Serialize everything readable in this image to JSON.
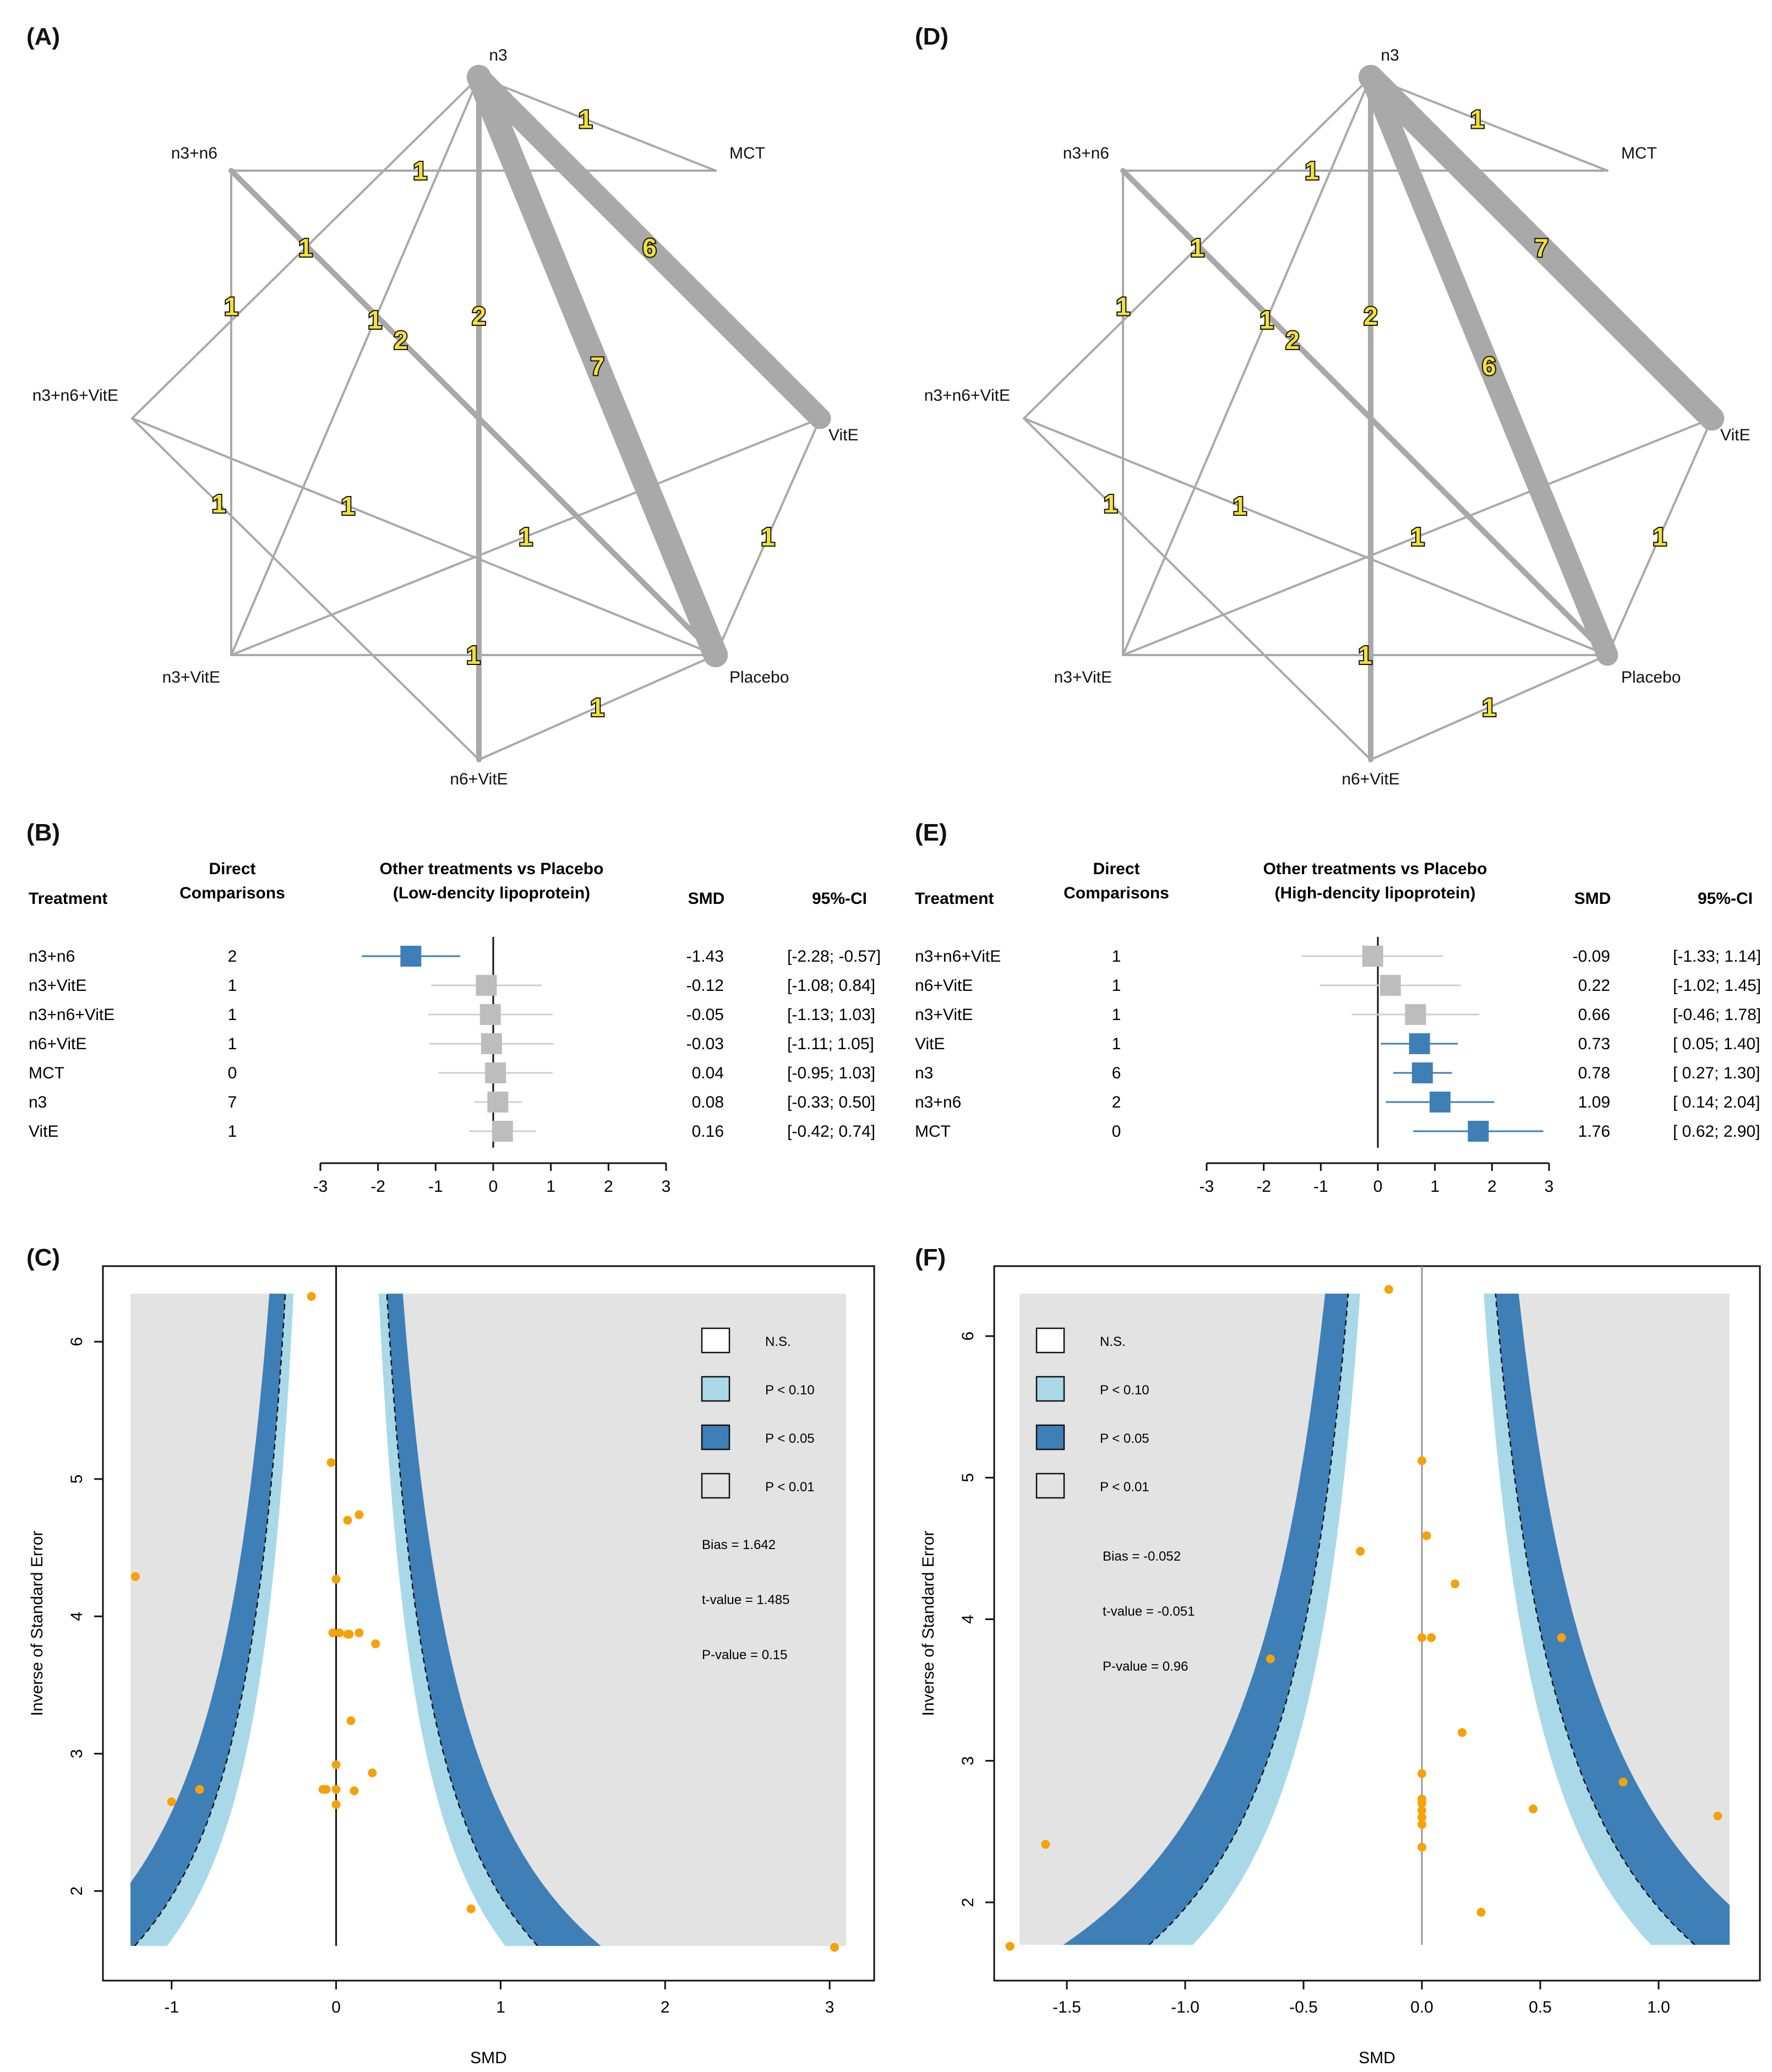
{
  "panel_labels": {
    "A": "(A)",
    "B": "(B)",
    "C": "(C)",
    "D": "(D)",
    "E": "(E)",
    "F": "(F)"
  },
  "networks": [
    {
      "id": "A",
      "nodes": [
        "n3",
        "MCT",
        "VitE",
        "Placebo",
        "n6+VitE",
        "n3+VitE",
        "n3+n6+VitE",
        "n3+n6"
      ],
      "edges": [
        {
          "from": "n3",
          "to": "MCT",
          "count": "1"
        },
        {
          "from": "n3+n6",
          "to": "MCT",
          "count": "1"
        },
        {
          "from": "n3",
          "to": "VitE",
          "count": "6"
        },
        {
          "from": "n3",
          "to": "Placebo",
          "count": "7"
        },
        {
          "from": "n3",
          "to": "n3+n6+VitE",
          "count": "1"
        },
        {
          "from": "n3",
          "to": "n3+VitE",
          "count": "1"
        },
        {
          "from": "n3",
          "to": "n6+VitE",
          "count": "2"
        },
        {
          "from": "n3+n6",
          "to": "Placebo",
          "count": "2"
        },
        {
          "from": "n3+n6",
          "to": "n3+VitE",
          "count": "1"
        },
        {
          "from": "n3+n6+VitE",
          "to": "Placebo",
          "count": "1"
        },
        {
          "from": "n3+n6+VitE",
          "to": "n6+VitE",
          "count": "1"
        },
        {
          "from": "n3+VitE",
          "to": "VitE",
          "count": "1"
        },
        {
          "from": "n3+VitE",
          "to": "Placebo",
          "count": "1"
        },
        {
          "from": "VitE",
          "to": "Placebo",
          "count": "1"
        },
        {
          "from": "Placebo",
          "to": "n6+VitE",
          "count": "1"
        }
      ]
    },
    {
      "id": "D",
      "nodes": [
        "n3",
        "MCT",
        "VitE",
        "Placebo",
        "n6+VitE",
        "n3+VitE",
        "n3+n6+VitE",
        "n3+n6"
      ],
      "edges": [
        {
          "from": "n3",
          "to": "MCT",
          "count": "1"
        },
        {
          "from": "n3+n6",
          "to": "MCT",
          "count": "1"
        },
        {
          "from": "n3",
          "to": "VitE",
          "count": "7"
        },
        {
          "from": "n3",
          "to": "Placebo",
          "count": "6"
        },
        {
          "from": "n3",
          "to": "n3+n6+VitE",
          "count": "1"
        },
        {
          "from": "n3",
          "to": "n3+VitE",
          "count": "1"
        },
        {
          "from": "n3",
          "to": "n6+VitE",
          "count": "2"
        },
        {
          "from": "n3+n6",
          "to": "Placebo",
          "count": "2"
        },
        {
          "from": "n3+n6",
          "to": "n3+VitE",
          "count": "1"
        },
        {
          "from": "n3+n6+VitE",
          "to": "Placebo",
          "count": "1"
        },
        {
          "from": "n3+n6+VitE",
          "to": "n6+VitE",
          "count": "1"
        },
        {
          "from": "n3+VitE",
          "to": "VitE",
          "count": "1"
        },
        {
          "from": "n3+VitE",
          "to": "Placebo",
          "count": "1"
        },
        {
          "from": "VitE",
          "to": "Placebo",
          "count": "1"
        },
        {
          "from": "Placebo",
          "to": "n6+VitE",
          "count": "1"
        }
      ]
    }
  ],
  "forests": [
    {
      "id": "B",
      "header_treatment": "Treatment",
      "header_direct_1": "Direct",
      "header_direct_2": "Comparisons",
      "header_title_1": "Other treatments vs Placebo",
      "header_title_2": "(Low-dencity lipoprotein)",
      "header_smd": "SMD",
      "header_ci": "95%-CI",
      "xlim": [
        -3,
        3
      ],
      "ticks": [
        "-3",
        "-2",
        "-1",
        "0",
        "1",
        "2",
        "3"
      ],
      "rows": [
        {
          "name": "n3+n6",
          "direct": "2",
          "smd": -1.43,
          "lo": -2.28,
          "hi": -0.57,
          "smd_text": "-1.43",
          "ci_text": "[-2.28; -0.57]",
          "sig": true
        },
        {
          "name": "n3+VitE",
          "direct": "1",
          "smd": -0.12,
          "lo": -1.08,
          "hi": 0.84,
          "smd_text": "-0.12",
          "ci_text": "[-1.08;  0.84]",
          "sig": false
        },
        {
          "name": "n3+n6+VitE",
          "direct": "1",
          "smd": -0.05,
          "lo": -1.13,
          "hi": 1.03,
          "smd_text": "-0.05",
          "ci_text": "[-1.13;  1.03]",
          "sig": false
        },
        {
          "name": "n6+VitE",
          "direct": "1",
          "smd": -0.03,
          "lo": -1.11,
          "hi": 1.05,
          "smd_text": "-0.03",
          "ci_text": "[-1.11;  1.05]",
          "sig": false
        },
        {
          "name": "MCT",
          "direct": "0",
          "smd": 0.04,
          "lo": -0.95,
          "hi": 1.03,
          "smd_text": "0.04",
          "ci_text": "[-0.95;  1.03]",
          "sig": false
        },
        {
          "name": "n3",
          "direct": "7",
          "smd": 0.08,
          "lo": -0.33,
          "hi": 0.5,
          "smd_text": "0.08",
          "ci_text": "[-0.33;  0.50]",
          "sig": false
        },
        {
          "name": "VitE",
          "direct": "1",
          "smd": 0.16,
          "lo": -0.42,
          "hi": 0.74,
          "smd_text": "0.16",
          "ci_text": "[-0.42;  0.74]",
          "sig": false
        }
      ]
    },
    {
      "id": "E",
      "header_treatment": "Treatment",
      "header_direct_1": "Direct",
      "header_direct_2": "Comparisons",
      "header_title_1": "Other treatments vs Placebo",
      "header_title_2": "(High-dencity lipoprotein)",
      "header_smd": "SMD",
      "header_ci": "95%-CI",
      "xlim": [
        -3,
        3
      ],
      "ticks": [
        "-3",
        "-2",
        "-1",
        "0",
        "1",
        "2",
        "3"
      ],
      "rows": [
        {
          "name": "n3+n6+VitE",
          "direct": "1",
          "smd": -0.09,
          "lo": -1.33,
          "hi": 1.14,
          "smd_text": "-0.09",
          "ci_text": "[-1.33;  1.14]",
          "sig": false
        },
        {
          "name": "n6+VitE",
          "direct": "1",
          "smd": 0.22,
          "lo": -1.02,
          "hi": 1.45,
          "smd_text": "0.22",
          "ci_text": "[-1.02;  1.45]",
          "sig": false
        },
        {
          "name": "n3+VitE",
          "direct": "1",
          "smd": 0.66,
          "lo": -0.46,
          "hi": 1.78,
          "smd_text": "0.66",
          "ci_text": "[-0.46;  1.78]",
          "sig": false
        },
        {
          "name": "VitE",
          "direct": "1",
          "smd": 0.73,
          "lo": 0.05,
          "hi": 1.4,
          "smd_text": "0.73",
          "ci_text": "[ 0.05;  1.40]",
          "sig": true
        },
        {
          "name": "n3",
          "direct": "6",
          "smd": 0.78,
          "lo": 0.27,
          "hi": 1.3,
          "smd_text": "0.78",
          "ci_text": "[ 0.27;  1.30]",
          "sig": true
        },
        {
          "name": "n3+n6",
          "direct": "2",
          "smd": 1.09,
          "lo": 0.14,
          "hi": 2.04,
          "smd_text": "1.09",
          "ci_text": "[ 0.14;  2.04]",
          "sig": true
        },
        {
          "name": "MCT",
          "direct": "0",
          "smd": 1.76,
          "lo": 0.62,
          "hi": 2.9,
          "smd_text": "1.76",
          "ci_text": "[ 0.62;  2.90]",
          "sig": true
        }
      ]
    }
  ],
  "funnels": [
    {
      "id": "C",
      "xlabel": "SMD",
      "ylabel": "Inverse of Standard Error",
      "xlim": [
        -1.25,
        3.1
      ],
      "ylim": [
        1.6,
        6.35
      ],
      "xticks": [
        "-1",
        "0",
        "1",
        "2",
        "3"
      ],
      "yticks": [
        "2",
        "3",
        "4",
        "5",
        "6"
      ],
      "legend": [
        "N.S.",
        "P < 0.10",
        "P < 0.05",
        "P < 0.01"
      ],
      "stats": [
        "Bias = 1.642",
        "t-value = 1.485",
        "P-value = 0.15"
      ],
      "points": [
        [
          -0.15,
          6.33
        ],
        [
          -0.03,
          5.12
        ],
        [
          0.14,
          4.74
        ],
        [
          0.07,
          4.7
        ],
        [
          -1.22,
          4.29
        ],
        [
          0.0,
          4.27
        ],
        [
          -0.02,
          3.88
        ],
        [
          0.02,
          3.88
        ],
        [
          0.07,
          3.87
        ],
        [
          0.08,
          3.87
        ],
        [
          0.14,
          3.88
        ],
        [
          0.24,
          3.8
        ],
        [
          0.09,
          3.24
        ],
        [
          0.0,
          2.92
        ],
        [
          0.22,
          2.86
        ],
        [
          -1.0,
          2.65
        ],
        [
          -0.83,
          2.74
        ],
        [
          -0.08,
          2.74
        ],
        [
          -0.06,
          2.74
        ],
        [
          0.0,
          2.74
        ],
        [
          0.11,
          2.73
        ],
        [
          0.0,
          2.63
        ],
        [
          0.82,
          1.87
        ],
        [
          3.03,
          1.59
        ]
      ]
    },
    {
      "id": "F",
      "xlabel": "SMD",
      "ylabel": "Inverse of Standard Error",
      "xlim": [
        -1.7,
        1.3
      ],
      "ylim": [
        1.7,
        6.3
      ],
      "xticks": [
        "-1.5",
        "-1.0",
        "-0.5",
        "0.0",
        "0.5",
        "1.0"
      ],
      "yticks": [
        "2",
        "3",
        "4",
        "5",
        "6"
      ],
      "legend": [
        "N.S.",
        "P < 0.10",
        "P < 0.05",
        "P < 0.01"
      ],
      "stats": [
        "Bias = -0.052",
        "t-value = -0.051",
        "P-value = 0.96"
      ],
      "points": [
        [
          -0.14,
          6.33
        ],
        [
          0.0,
          5.12
        ],
        [
          0.02,
          4.59
        ],
        [
          -0.26,
          4.48
        ],
        [
          0.14,
          4.25
        ],
        [
          0.0,
          3.87
        ],
        [
          0.04,
          3.87
        ],
        [
          0.59,
          3.87
        ],
        [
          -0.64,
          3.72
        ],
        [
          0.17,
          3.2
        ],
        [
          0.0,
          2.91
        ],
        [
          0.0,
          2.73
        ],
        [
          0.0,
          2.7
        ],
        [
          0.0,
          2.65
        ],
        [
          0.0,
          2.6
        ],
        [
          0.47,
          2.66
        ],
        [
          0.85,
          2.85
        ],
        [
          1.25,
          2.61
        ],
        [
          0.0,
          2.55
        ],
        [
          -1.59,
          2.41
        ],
        [
          0.0,
          2.39
        ],
        [
          0.25,
          1.93
        ],
        [
          -1.74,
          1.69
        ]
      ]
    }
  ],
  "colors": {
    "grey_edge": "#a9a9a9",
    "badge_fill": "#f2e13a",
    "blue": "#3f7fb8",
    "light_blue": "#a9d9e8",
    "ns": "#ffffff",
    "p01": "#e3e3e3",
    "point": "#f5a20a"
  }
}
